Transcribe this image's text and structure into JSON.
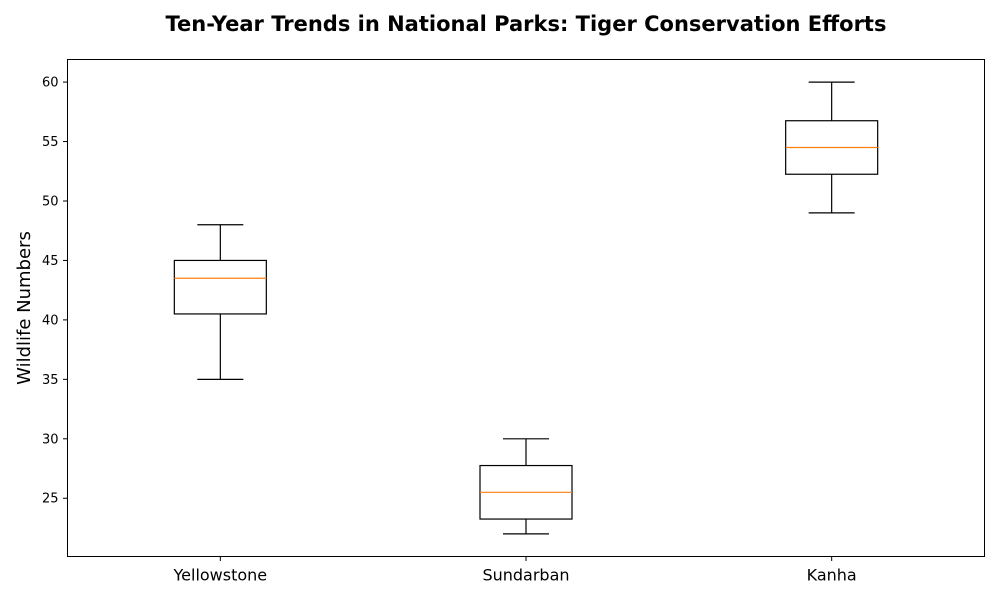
{
  "chart_data": {
    "type": "box",
    "title": "Ten-Year Trends in National Parks: Tiger Conservation Efforts",
    "xlabel": "",
    "ylabel": "Wildlife Numbers",
    "categories": [
      "Yellowstone",
      "Sundarban",
      "Kanha"
    ],
    "boxes": [
      {
        "min": 35,
        "q1": 40.5,
        "median": 43.5,
        "q3": 45,
        "max": 48
      },
      {
        "min": 22,
        "q1": 23.25,
        "median": 25.5,
        "q3": 27.75,
        "max": 30
      },
      {
        "min": 49,
        "q1": 52.25,
        "median": 54.5,
        "q3": 56.75,
        "max": 60
      }
    ],
    "yticks": [
      25,
      30,
      35,
      40,
      45,
      50,
      55,
      60
    ],
    "ylim": [
      20.1,
      61.9
    ],
    "grid": false,
    "legend": "none",
    "colors": {
      "box": "#000000",
      "median": "#ff7f0e"
    }
  }
}
